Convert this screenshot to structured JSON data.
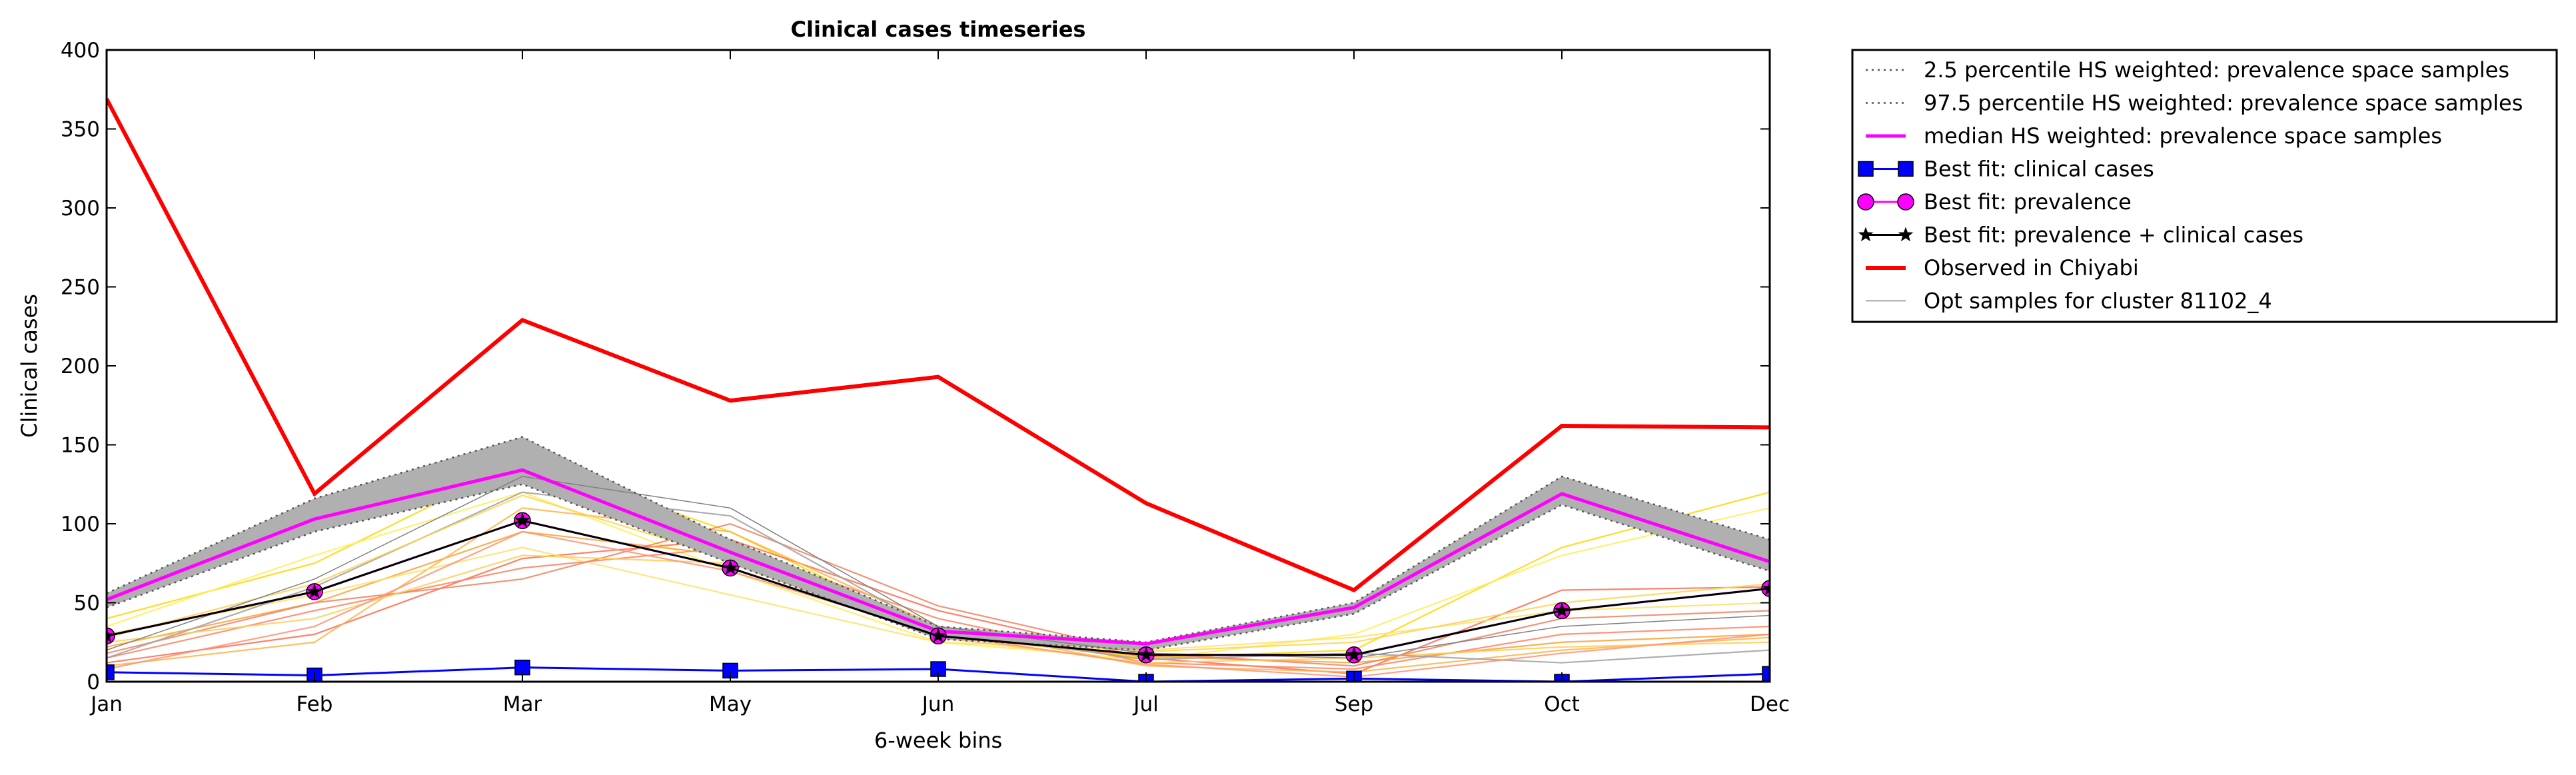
{
  "chart_data": {
    "type": "line",
    "title": "Clinical cases timeseries",
    "xlabel": "6-week bins",
    "ylabel": "Clinical cases",
    "x_categories": [
      "Jan",
      "Feb",
      "Mar",
      "May",
      "Jun",
      "Jul",
      "Sep",
      "Oct",
      "Dec"
    ],
    "ylim": [
      0,
      400
    ],
    "yticks": [
      0,
      50,
      100,
      150,
      200,
      250,
      300,
      350,
      400
    ],
    "grid": false,
    "legend_position": "outside-top-right",
    "band": {
      "lower": [
        47,
        95,
        125,
        75,
        27,
        20,
        43,
        112,
        70
      ],
      "upper": [
        56,
        116,
        155,
        90,
        35,
        25,
        50,
        130,
        90
      ],
      "color": "#b0b0b0"
    },
    "series": [
      {
        "name": "2.5 percentile HS weighted: prevalence space samples",
        "style": "dotted",
        "color": "#555555",
        "values": [
          47,
          95,
          125,
          75,
          27,
          20,
          43,
          112,
          70
        ]
      },
      {
        "name": "97.5 percentile HS weighted: prevalence space samples",
        "style": "dotted",
        "color": "#555555",
        "values": [
          56,
          116,
          155,
          90,
          35,
          25,
          50,
          130,
          90
        ]
      },
      {
        "name": "median HS weighted: prevalence space samples",
        "style": "solid",
        "color": "#ff00ff",
        "width": 5,
        "values": [
          52,
          103,
          134,
          82,
          32,
          24,
          47,
          119,
          76
        ]
      },
      {
        "name": "Best fit: clinical cases",
        "style": "solid",
        "color": "#0000ff",
        "marker": "square",
        "values": [
          6,
          4,
          9,
          7,
          8,
          0,
          2,
          0,
          5
        ]
      },
      {
        "name": "Best fit: prevalence",
        "style": "solid",
        "color": "#ff00ff",
        "marker": "circle",
        "values": [
          29,
          57,
          102,
          72,
          29,
          17,
          17,
          45,
          59
        ]
      },
      {
        "name": "Best fit: prevalence + clinical cases",
        "style": "solid",
        "color": "#000000",
        "marker": "star",
        "values": [
          29,
          57,
          102,
          72,
          29,
          17,
          17,
          45,
          59
        ]
      },
      {
        "name": "Observed in Chiyabi",
        "style": "solid",
        "color": "#ff0000",
        "width": 6,
        "values": [
          369,
          119,
          229,
          178,
          193,
          113,
          58,
          162,
          161
        ]
      },
      {
        "name": "Opt samples for cluster 81102_4",
        "style": "solid",
        "color": "#808080",
        "width": 1.5,
        "values": [
          20,
          65,
          130,
          110,
          35,
          18,
          15,
          35,
          42
        ]
      }
    ],
    "samples": [
      {
        "color": "#ffd700",
        "values": [
          40,
          75,
          140,
          95,
          30,
          15,
          20,
          85,
          120
        ]
      },
      {
        "color": "#ffee55",
        "values": [
          35,
          80,
          120,
          70,
          25,
          14,
          30,
          80,
          110
        ]
      },
      {
        "color": "#ff6a4d",
        "values": [
          12,
          30,
          78,
          90,
          45,
          15,
          5,
          58,
          60
        ]
      },
      {
        "color": "#ff8060",
        "values": [
          15,
          45,
          72,
          85,
          40,
          12,
          8,
          30,
          35
        ]
      },
      {
        "color": "#ffa030",
        "values": [
          22,
          50,
          95,
          80,
          30,
          16,
          12,
          25,
          30
        ]
      },
      {
        "color": "#ffb347",
        "values": [
          10,
          25,
          110,
          95,
          35,
          10,
          6,
          20,
          28
        ]
      },
      {
        "color": "#ffe066",
        "values": [
          30,
          55,
          85,
          55,
          25,
          20,
          28,
          45,
          50
        ]
      },
      {
        "color": "#f08060",
        "values": [
          18,
          50,
          65,
          100,
          48,
          18,
          10,
          40,
          45
        ]
      },
      {
        "color": "#ffcc55",
        "values": [
          25,
          40,
          80,
          75,
          28,
          12,
          15,
          22,
          25
        ]
      },
      {
        "color": "#a0a0a0",
        "values": [
          15,
          60,
          120,
          105,
          32,
          14,
          18,
          12,
          20
        ]
      },
      {
        "color": "#ffd24d",
        "values": [
          28,
          62,
          118,
          78,
          33,
          19,
          25,
          50,
          62
        ]
      },
      {
        "color": "#ff9070",
        "values": [
          8,
          35,
          95,
          70,
          30,
          11,
          3,
          18,
          30
        ]
      }
    ]
  }
}
